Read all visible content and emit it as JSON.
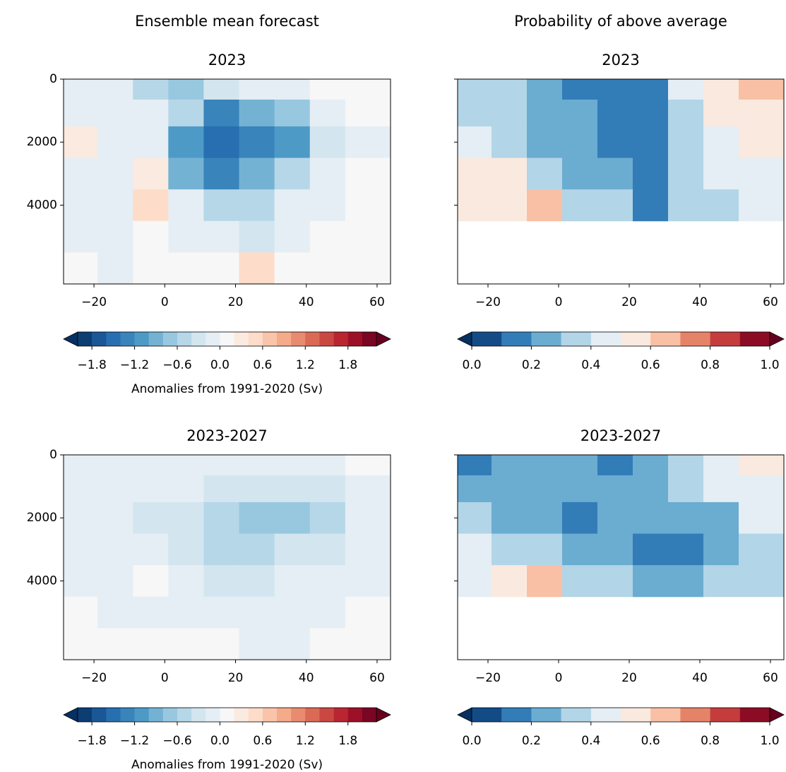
{
  "chart_data": [
    {
      "type": "contour",
      "column_title": "Ensemble mean forecast",
      "title": "2023",
      "x": [
        -24,
        -14,
        -4,
        6,
        16,
        26,
        36,
        46,
        56
      ],
      "y": [
        300,
        1000,
        2000,
        3000,
        4000,
        5000,
        6000
      ],
      "values": [
        [
          -0.1,
          -0.1,
          -0.5,
          -0.7,
          -0.4,
          -0.2,
          -0.1,
          0.05,
          0
        ],
        [
          -0.05,
          -0.1,
          -0.1,
          -0.6,
          -1.3,
          -1.0,
          -0.7,
          -0.2,
          0
        ],
        [
          0.2,
          -0.1,
          -0.2,
          -1.2,
          -1.6,
          -1.3,
          -1.2,
          -0.4,
          -0.1
        ],
        [
          -0.1,
          -0.2,
          0.2,
          -1.0,
          -1.3,
          -1.0,
          -0.6,
          -0.2,
          0
        ],
        [
          -0.1,
          -0.1,
          0.5,
          -0.2,
          -0.6,
          -0.5,
          -0.2,
          -0.1,
          0
        ],
        [
          -0.1,
          -0.1,
          0,
          -0.1,
          -0.2,
          -0.4,
          -0.1,
          0,
          0
        ],
        [
          0,
          -0.1,
          0,
          0,
          0,
          0.4,
          0,
          0,
          0
        ]
      ],
      "xlim": [
        -28.6,
        63.8
      ],
      "ylim": [
        6500,
        0
      ],
      "xticks": [
        {
          "value": -20,
          "label": "−20"
        },
        0,
        20,
        40,
        60
      ],
      "yticks": [
        0,
        2000,
        4000
      ],
      "yticklabels": true,
      "cmap_anchors": [
        "#053061",
        "#2166ac",
        "#4393c3",
        "#92c5de",
        "#d1e5f0",
        "#f7f7f7",
        "#fddbc7",
        "#f4a582",
        "#d6604d",
        "#b2182b",
        "#67001f"
      ],
      "colorbar": {
        "label": "Anomalies from 1991-2020 (Sv)",
        "levels": [
          -2.0,
          -1.8,
          -1.6,
          -1.4,
          -1.2,
          -1.0,
          -0.8,
          -0.6,
          -0.4,
          -0.2,
          0,
          0.2,
          0.4,
          0.6,
          0.8,
          1.0,
          1.2,
          1.4,
          1.6,
          1.8,
          2.0,
          2.2
        ],
        "ticks": [
          {
            "value": -1.8,
            "label": "−1.8"
          },
          {
            "value": -1.2,
            "label": "−1.2"
          },
          {
            "value": -0.6,
            "label": "−0.6"
          },
          {
            "value": 0,
            "label": "0.0"
          },
          0.6,
          1.2,
          1.8
        ]
      }
    },
    {
      "type": "contour",
      "column_title": "Probability of above average",
      "title": "2023",
      "x": [
        -24,
        -14,
        -4,
        6,
        16,
        26,
        36,
        46,
        56
      ],
      "y": [
        300,
        1000,
        2000,
        3000,
        4000,
        5000,
        6000
      ],
      "values": [
        [
          0.3,
          0.3,
          0.2,
          0.15,
          0.15,
          0.15,
          0.4,
          0.5,
          0.6
        ],
        [
          0.3,
          0.3,
          0.25,
          0.25,
          0.15,
          0.15,
          0.35,
          0.5,
          0.55
        ],
        [
          0.45,
          0.35,
          0.25,
          0.25,
          0.15,
          0.15,
          0.3,
          0.45,
          0.55
        ],
        [
          0.5,
          0.5,
          0.35,
          0.25,
          0.25,
          0.15,
          0.3,
          0.4,
          0.45
        ],
        [
          0.55,
          0.55,
          0.65,
          0.35,
          0.3,
          0.15,
          0.3,
          0.35,
          0.4
        ],
        [
          null,
          null,
          null,
          null,
          null,
          null,
          null,
          null,
          null
        ],
        [
          null,
          null,
          null,
          null,
          null,
          null,
          null,
          null,
          null
        ]
      ],
      "xlim": [
        -28.6,
        63.8
      ],
      "ylim": [
        6500,
        0
      ],
      "xticks": [
        {
          "value": -20,
          "label": "−20"
        },
        0,
        20,
        40,
        60
      ],
      "yticks": [
        0,
        2000,
        4000
      ],
      "yticklabels": false,
      "cmap_anchors": [
        "#053061",
        "#2166ac",
        "#4393c3",
        "#92c5de",
        "#d1e5f0",
        "#f7f7f7",
        "#fddbc7",
        "#f4a582",
        "#d6604d",
        "#b2182b",
        "#67001f"
      ],
      "colorbar": {
        "levels": [
          0,
          0.1,
          0.2,
          0.3,
          0.4,
          0.5,
          0.6,
          0.7,
          0.8,
          0.9,
          1.0
        ],
        "ticks": [
          {
            "value": 0,
            "label": "0.0"
          },
          0.2,
          0.4,
          0.6,
          0.8,
          {
            "value": 1,
            "label": "1.0"
          }
        ]
      }
    },
    {
      "type": "contour",
      "title": "2023-2027",
      "x": [
        -24,
        -14,
        -4,
        6,
        16,
        26,
        36,
        46,
        56
      ],
      "y": [
        300,
        1000,
        2000,
        3000,
        4000,
        5000,
        6000
      ],
      "values": [
        [
          -0.1,
          -0.1,
          -0.1,
          -0.1,
          -0.1,
          -0.1,
          -0.1,
          -0.1,
          0
        ],
        [
          -0.1,
          -0.1,
          -0.2,
          -0.2,
          -0.3,
          -0.3,
          -0.4,
          -0.3,
          -0.1
        ],
        [
          -0.1,
          -0.1,
          -0.3,
          -0.4,
          -0.5,
          -0.7,
          -0.8,
          -0.5,
          -0.2
        ],
        [
          -0.1,
          -0.2,
          -0.2,
          -0.4,
          -0.5,
          -0.5,
          -0.4,
          -0.3,
          -0.1
        ],
        [
          -0.1,
          -0.1,
          0.1,
          -0.1,
          -0.3,
          -0.3,
          -0.2,
          -0.1,
          -0.1
        ],
        [
          0,
          -0.1,
          -0.1,
          -0.1,
          -0.1,
          -0.2,
          -0.1,
          -0.1,
          0
        ],
        [
          0,
          0,
          0,
          0,
          0,
          -0.1,
          -0.1,
          0,
          0
        ]
      ],
      "xlim": [
        -28.6,
        63.8
      ],
      "ylim": [
        6500,
        0
      ],
      "xticks": [
        {
          "value": -20,
          "label": "−20"
        },
        0,
        20,
        40,
        60
      ],
      "yticks": [
        0,
        2000,
        4000
      ],
      "yticklabels": true,
      "cmap_anchors": [
        "#053061",
        "#2166ac",
        "#4393c3",
        "#92c5de",
        "#d1e5f0",
        "#f7f7f7",
        "#fddbc7",
        "#f4a582",
        "#d6604d",
        "#b2182b",
        "#67001f"
      ],
      "colorbar": {
        "label": "Anomalies from 1991-2020 (Sv)",
        "levels": [
          -2.0,
          -1.8,
          -1.6,
          -1.4,
          -1.2,
          -1.0,
          -0.8,
          -0.6,
          -0.4,
          -0.2,
          0,
          0.2,
          0.4,
          0.6,
          0.8,
          1.0,
          1.2,
          1.4,
          1.6,
          1.8,
          2.0,
          2.2
        ],
        "ticks": [
          {
            "value": -1.8,
            "label": "−1.8"
          },
          {
            "value": -1.2,
            "label": "−1.2"
          },
          {
            "value": -0.6,
            "label": "−0.6"
          },
          {
            "value": 0,
            "label": "0.0"
          },
          0.6,
          1.2,
          1.8
        ]
      }
    },
    {
      "type": "contour",
      "title": "2023-2027",
      "x": [
        -24,
        -14,
        -4,
        6,
        16,
        26,
        36,
        46,
        56
      ],
      "y": [
        300,
        1000,
        2000,
        3000,
        4000,
        5000,
        6000
      ],
      "values": [
        [
          0.15,
          0.2,
          0.2,
          0.2,
          0.15,
          0.2,
          0.3,
          0.45,
          0.5
        ],
        [
          0.25,
          0.25,
          0.25,
          0.25,
          0.25,
          0.25,
          0.3,
          0.4,
          0.45
        ],
        [
          0.3,
          0.25,
          0.25,
          0.15,
          0.25,
          0.25,
          0.2,
          0.25,
          0.4
        ],
        [
          0.45,
          0.3,
          0.3,
          0.25,
          0.25,
          0.15,
          0.15,
          0.25,
          0.35
        ],
        [
          0.45,
          0.55,
          0.6,
          0.35,
          0.3,
          0.25,
          0.25,
          0.3,
          0.35
        ],
        [
          null,
          null,
          null,
          null,
          null,
          null,
          null,
          null,
          null
        ],
        [
          null,
          null,
          null,
          null,
          null,
          null,
          null,
          null,
          null
        ]
      ],
      "xlim": [
        -28.6,
        63.8
      ],
      "ylim": [
        6500,
        0
      ],
      "xticks": [
        {
          "value": -20,
          "label": "−20"
        },
        0,
        20,
        40,
        60
      ],
      "yticks": [
        0,
        2000,
        4000
      ],
      "yticklabels": false,
      "cmap_anchors": [
        "#053061",
        "#2166ac",
        "#4393c3",
        "#92c5de",
        "#d1e5f0",
        "#f7f7f7",
        "#fddbc7",
        "#f4a582",
        "#d6604d",
        "#b2182b",
        "#67001f"
      ],
      "colorbar": {
        "levels": [
          0,
          0.1,
          0.2,
          0.3,
          0.4,
          0.5,
          0.6,
          0.7,
          0.8,
          0.9,
          1.0
        ],
        "ticks": [
          {
            "value": 0,
            "label": "0.0"
          },
          0.2,
          0.4,
          0.6,
          0.8,
          {
            "value": 1,
            "label": "1.0"
          }
        ]
      }
    }
  ]
}
